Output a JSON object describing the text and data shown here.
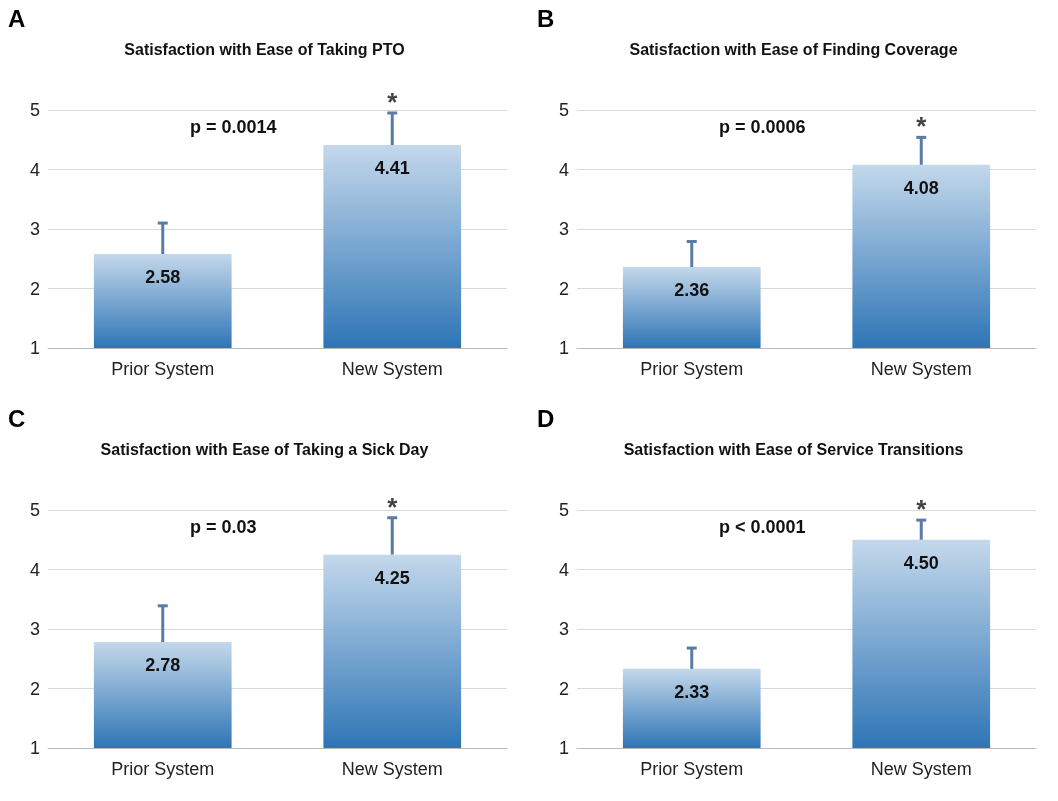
{
  "chart_data": [
    {
      "type": "bar",
      "title": "Satisfaction with Ease of Taking PTO",
      "categories": [
        "Prior System",
        "New System"
      ],
      "values": [
        2.58,
        4.41
      ],
      "color": "#2e75b6",
      "errors": [
        [
          2.58,
          3.1
        ],
        [
          4.41,
          4.95
        ]
      ],
      "data_labels": true,
      "ylim": [
        1,
        5
      ],
      "yticks": [
        1,
        2,
        3,
        4,
        5
      ],
      "grid": "y",
      "annotations": [
        "A",
        "p = 0.0014",
        {
          "text": "*",
          "x": "New System",
          "y": 4.95
        }
      ]
    },
    {
      "type": "bar",
      "title": "Satisfaction with Ease of Finding Coverage",
      "categories": [
        "Prior System",
        "New System"
      ],
      "values": [
        2.36,
        4.08
      ],
      "color": "#2e75b6",
      "errors": [
        [
          2.36,
          2.79
        ],
        [
          4.08,
          4.54
        ]
      ],
      "data_labels": true,
      "ylim": [
        1,
        5
      ],
      "yticks": [
        1,
        2,
        3,
        4,
        5
      ],
      "grid": "y",
      "annotations": [
        "B",
        "p = 0.0006",
        {
          "text": "*",
          "x": "New System",
          "y": 4.54
        }
      ]
    },
    {
      "type": "bar",
      "title": "Satisfaction with Ease of Taking a Sick Day",
      "categories": [
        "Prior System",
        "New System"
      ],
      "values": [
        2.78,
        4.25
      ],
      "color": "#2e75b6",
      "errors": [
        [
          2.78,
          3.39
        ],
        [
          4.25,
          4.87
        ]
      ],
      "data_labels": true,
      "ylim": [
        1,
        5
      ],
      "yticks": [
        1,
        2,
        3,
        4,
        5
      ],
      "grid": "y",
      "annotations": [
        "C",
        "p = 0.03",
        {
          "text": "*",
          "x": "New System",
          "y": 4.87
        }
      ]
    },
    {
      "type": "bar",
      "title": "Satisfaction with Ease of Service Transitions",
      "categories": [
        "Prior System",
        "New System"
      ],
      "values": [
        2.33,
        4.5
      ],
      "value_labels": [
        "2.33",
        "4.50"
      ],
      "color": "#2e75b6",
      "errors": [
        [
          2.33,
          2.68
        ],
        [
          4.5,
          4.83
        ]
      ],
      "ylim": [
        1,
        5
      ],
      "yticks": [
        1,
        2,
        3,
        4,
        5
      ],
      "grid": "y",
      "annotations": [
        "D",
        "p < 0.0001",
        {
          "text": "*",
          "x": "New System",
          "y": 4.83
        }
      ]
    }
  ]
}
